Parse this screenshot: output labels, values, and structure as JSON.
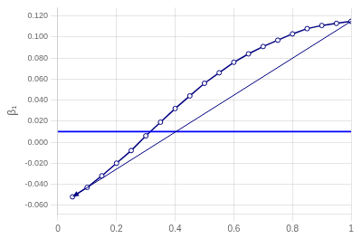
{
  "chart_data": {
    "type": "line",
    "x": [
      0.05,
      0.1,
      0.15,
      0.2,
      0.25,
      0.3,
      0.35,
      0.4,
      0.45,
      0.5,
      0.55,
      0.6,
      0.65,
      0.7,
      0.75,
      0.8,
      0.85,
      0.9,
      0.95,
      1.0
    ],
    "series": [
      {
        "values": [
          -0.052,
          -0.043,
          -0.032,
          -0.02,
          -0.008,
          0.006,
          0.019,
          0.032,
          0.044,
          0.056,
          0.066,
          0.076,
          0.084,
          0.091,
          0.097,
          0.103,
          0.108,
          0.111,
          0.113,
          0.115
        ],
        "color": "#000080",
        "marker": "circle"
      }
    ],
    "hline_y": 0.01,
    "hline_color": "#0000FF",
    "ylabel": "β₁",
    "xlim": [
      0,
      1
    ],
    "ylim": [
      -0.068,
      0.128
    ],
    "xticks": [
      0,
      0.2,
      0.4,
      0.6,
      0.8,
      1
    ],
    "yticks": [
      {
        "value": 0.12,
        "label": "0.120"
      },
      {
        "value": 0.1,
        "label": "0.100"
      },
      {
        "value": 0.08,
        "label": "0.080"
      },
      {
        "value": 0.06,
        "label": "0.060"
      },
      {
        "value": 0.04,
        "label": "0.040"
      },
      {
        "value": 0.02,
        "label": "0.020"
      },
      {
        "value": 0.0,
        "label": "0.000"
      },
      {
        "value": -0.02,
        "label": "-0.020"
      },
      {
        "value": -0.04,
        "label": "-0.040"
      },
      {
        "value": -0.06,
        "label": "-0.060"
      }
    ],
    "grid": true
  }
}
